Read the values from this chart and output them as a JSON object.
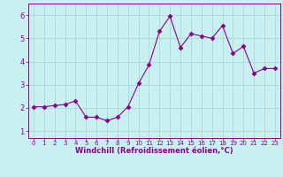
{
  "x": [
    0,
    1,
    2,
    3,
    4,
    5,
    6,
    7,
    8,
    9,
    10,
    11,
    12,
    13,
    14,
    15,
    16,
    17,
    18,
    19,
    20,
    21,
    22,
    23
  ],
  "y": [
    2.05,
    2.05,
    2.1,
    2.15,
    2.3,
    1.6,
    1.6,
    1.45,
    1.6,
    2.05,
    3.05,
    3.85,
    5.3,
    5.95,
    4.6,
    5.2,
    5.1,
    5.0,
    5.55,
    4.35,
    4.65,
    3.5,
    3.7,
    3.7
  ],
  "line_color": "#8b008b",
  "marker": "D",
  "marker_size": 2.5,
  "bg_color": "#c8f0f0",
  "grid_color": "#aad8d8",
  "xlabel": "Windchill (Refroidissement éolien,°C)",
  "xlabel_color": "#8b008b",
  "tick_color": "#8b008b",
  "ylim": [
    0.7,
    6.5
  ],
  "xlim": [
    -0.5,
    23.5
  ],
  "yticks": [
    1,
    2,
    3,
    4,
    5,
    6
  ],
  "xticks": [
    0,
    1,
    2,
    3,
    4,
    5,
    6,
    7,
    8,
    9,
    10,
    11,
    12,
    13,
    14,
    15,
    16,
    17,
    18,
    19,
    20,
    21,
    22,
    23
  ],
  "x_fontsize": 5.0,
  "y_fontsize": 6.0,
  "xlabel_fontsize": 6.0
}
